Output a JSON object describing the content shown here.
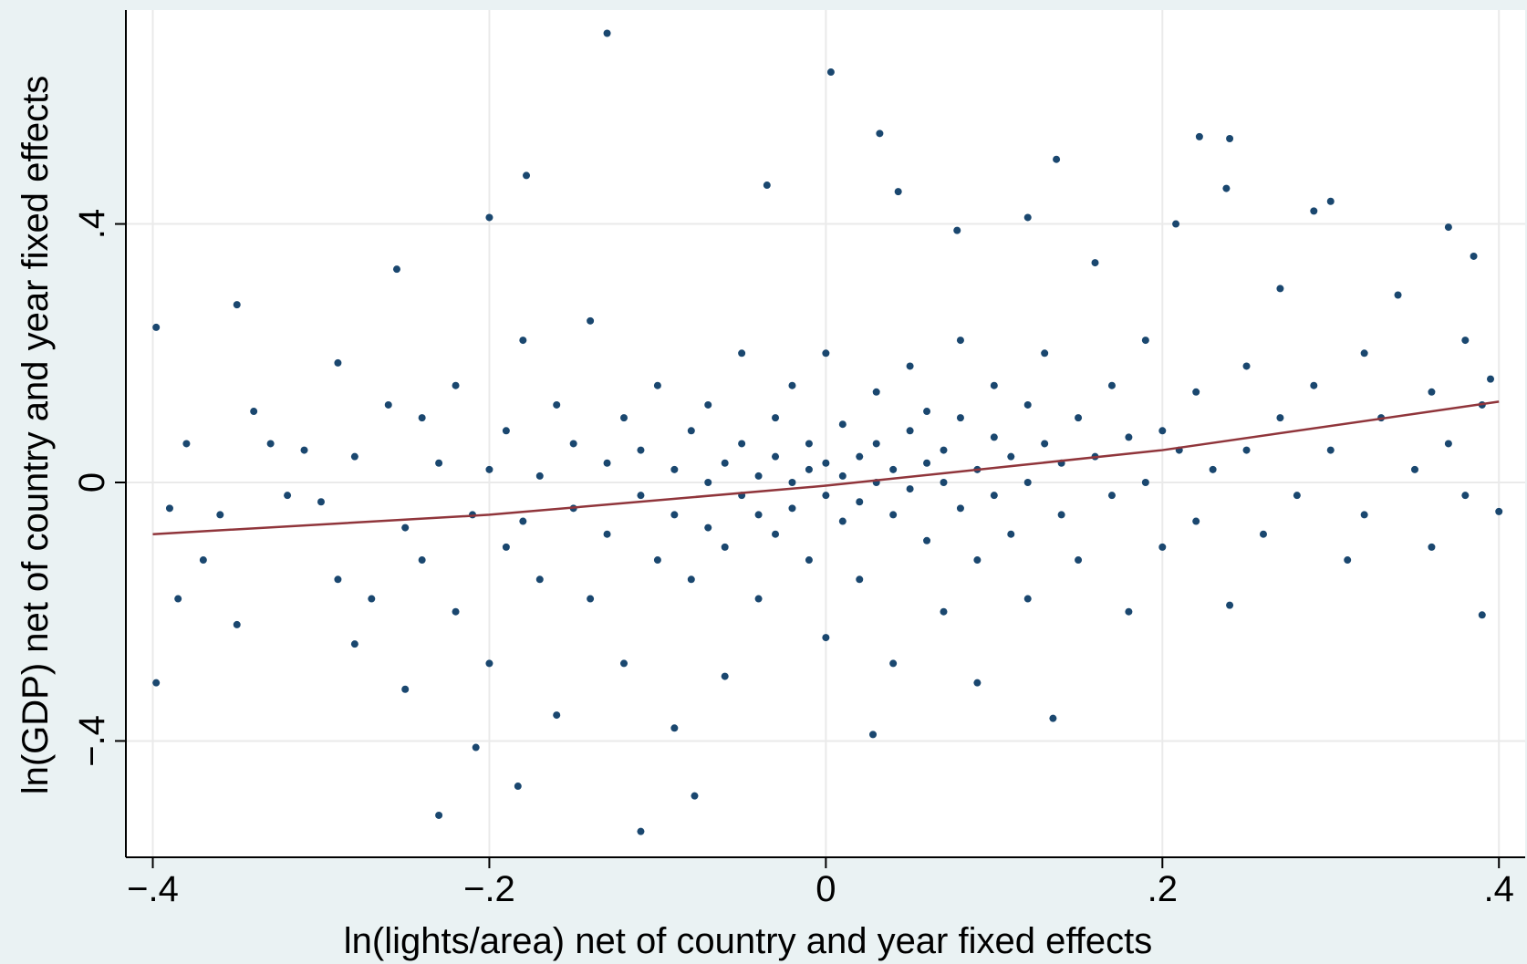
{
  "chart_data": {
    "type": "scatter",
    "x_label": "ln(lights/area) net of country and year fixed effects",
    "y_label": "ln(GDP) net of country and year fixed effects",
    "xlim": [
      -0.416,
      0.4156
    ],
    "ylim": [
      -0.58,
      0.731
    ],
    "xticks": [
      {
        "value": -0.4,
        "label": "−.4"
      },
      {
        "value": -0.2,
        "label": "−.2"
      },
      0,
      {
        "value": 0.2,
        "label": ".2"
      },
      {
        "value": 0.4,
        "label": ".4"
      }
    ],
    "yticks": [
      {
        "value": -0.4,
        "label": "−.4"
      },
      0,
      {
        "value": 0.4,
        "label": ".4"
      }
    ],
    "grid": true,
    "points": {
      "color": "#1a476f",
      "x": [
        -0.13,
        0.003,
        0.032,
        0.222,
        0.24,
        0.137,
        -0.178,
        -0.035,
        0.043,
        -0.2,
        0.29,
        0.3,
        0.37,
        -0.398,
        -0.398,
        -0.23,
        -0.11,
        -0.078,
        -0.183,
        -0.208,
        0.028,
        0.135,
        0.39,
        0.4,
        0.385,
        -0.255,
        -0.35,
        0.078,
        0.12,
        -0.34,
        -0.29,
        0.208,
        0.238,
        -0.39,
        -0.385,
        -0.38,
        -0.37,
        -0.36,
        -0.35,
        -0.33,
        -0.32,
        -0.31,
        -0.3,
        -0.29,
        -0.28,
        -0.28,
        -0.27,
        -0.26,
        -0.25,
        -0.25,
        -0.24,
        -0.24,
        -0.23,
        -0.22,
        -0.22,
        -0.21,
        -0.2,
        -0.2,
        -0.19,
        -0.19,
        -0.18,
        -0.18,
        -0.17,
        -0.17,
        -0.16,
        -0.16,
        -0.15,
        -0.15,
        -0.14,
        -0.14,
        -0.13,
        -0.13,
        -0.12,
        -0.12,
        -0.11,
        -0.11,
        -0.1,
        -0.1,
        -0.09,
        -0.09,
        -0.09,
        -0.08,
        -0.08,
        -0.07,
        -0.07,
        -0.07,
        -0.06,
        -0.06,
        -0.06,
        -0.05,
        -0.05,
        -0.05,
        -0.04,
        -0.04,
        -0.04,
        -0.03,
        -0.03,
        -0.03,
        -0.02,
        -0.02,
        -0.02,
        -0.01,
        -0.01,
        -0.01,
        0,
        0,
        0,
        0,
        0.01,
        0.01,
        0.01,
        0.02,
        0.02,
        0.02,
        0.03,
        0.03,
        0.03,
        0.04,
        0.04,
        0.04,
        0.05,
        0.05,
        0.05,
        0.06,
        0.06,
        0.06,
        0.07,
        0.07,
        0.07,
        0.08,
        0.08,
        0.08,
        0.09,
        0.09,
        0.09,
        0.1,
        0.1,
        0.1,
        0.11,
        0.11,
        0.12,
        0.12,
        0.12,
        0.13,
        0.13,
        0.14,
        0.14,
        0.15,
        0.15,
        0.16,
        0.16,
        0.17,
        0.17,
        0.18,
        0.18,
        0.19,
        0.19,
        0.2,
        0.2,
        0.21,
        0.22,
        0.22,
        0.23,
        0.24,
        0.25,
        0.25,
        0.26,
        0.27,
        0.27,
        0.28,
        0.29,
        0.3,
        0.31,
        0.32,
        0.32,
        0.33,
        0.34,
        0.35,
        0.36,
        0.36,
        0.37,
        0.38,
        0.38,
        0.39,
        0.395
      ],
      "y": [
        0.695,
        0.635,
        0.54,
        0.535,
        0.532,
        0.5,
        0.475,
        0.46,
        0.45,
        0.41,
        0.42,
        0.435,
        0.395,
        0.24,
        -0.31,
        -0.515,
        -0.54,
        -0.485,
        -0.47,
        -0.41,
        -0.39,
        -0.365,
        -0.205,
        -0.045,
        0.35,
        0.33,
        0.275,
        0.39,
        0.41,
        0.11,
        0.185,
        0.4,
        0.455,
        -0.04,
        -0.18,
        0.06,
        -0.12,
        -0.05,
        -0.22,
        0.06,
        -0.02,
        0.05,
        -0.03,
        -0.15,
        0.04,
        -0.25,
        -0.18,
        0.12,
        -0.07,
        -0.32,
        0.1,
        -0.12,
        0.03,
        -0.2,
        0.15,
        -0.05,
        0.02,
        -0.28,
        0.08,
        -0.1,
        0.22,
        -0.06,
        0.01,
        -0.15,
        0.12,
        -0.36,
        -0.04,
        0.06,
        -0.18,
        0.25,
        -0.08,
        0.03,
        -0.28,
        0.1,
        -0.02,
        0.05,
        -0.12,
        0.15,
        -0.05,
        0.02,
        -0.38,
        0.08,
        -0.15,
        0,
        -0.07,
        0.12,
        0.03,
        -0.1,
        -0.3,
        0.06,
        -0.02,
        0.2,
        -0.05,
        0.01,
        -0.18,
        0.04,
        -0.08,
        0.1,
        0,
        -0.04,
        0.15,
        0.02,
        -0.12,
        0.06,
        -0.02,
        0.03,
        0.2,
        -0.24,
        0.01,
        -0.06,
        0.09,
        0.04,
        -0.03,
        -0.15,
        0.06,
        0,
        0.14,
        -0.05,
        0.02,
        -0.28,
        0.08,
        -0.01,
        0.18,
        0.03,
        -0.09,
        0.11,
        0,
        -0.2,
        0.05,
        0.1,
        -0.04,
        0.22,
        0.02,
        -0.12,
        -0.31,
        0.07,
        -0.02,
        0.15,
        0.04,
        -0.08,
        0.12,
        0,
        -0.18,
        0.06,
        0.2,
        -0.05,
        0.03,
        0.1,
        -0.12,
        0.34,
        0.04,
        -0.02,
        0.15,
        0.07,
        -0.2,
        0,
        0.22,
        0.08,
        -0.1,
        0.05,
        0.14,
        -0.06,
        0.02,
        -0.19,
        0.18,
        0.05,
        -0.08,
        0.1,
        0.3,
        -0.02,
        0.15,
        0.05,
        -0.12,
        0.2,
        -0.05,
        0.1,
        0.29,
        0.02,
        0.14,
        -0.1,
        0.06,
        0.22,
        -0.02,
        0.12,
        0.16
      ]
    },
    "fit_line": {
      "color": "#90353b",
      "x": [
        -0.4,
        -0.2,
        0,
        0.2,
        0.4
      ],
      "y": [
        -0.08,
        -0.05,
        -0.005,
        0.05,
        0.125
      ]
    }
  }
}
